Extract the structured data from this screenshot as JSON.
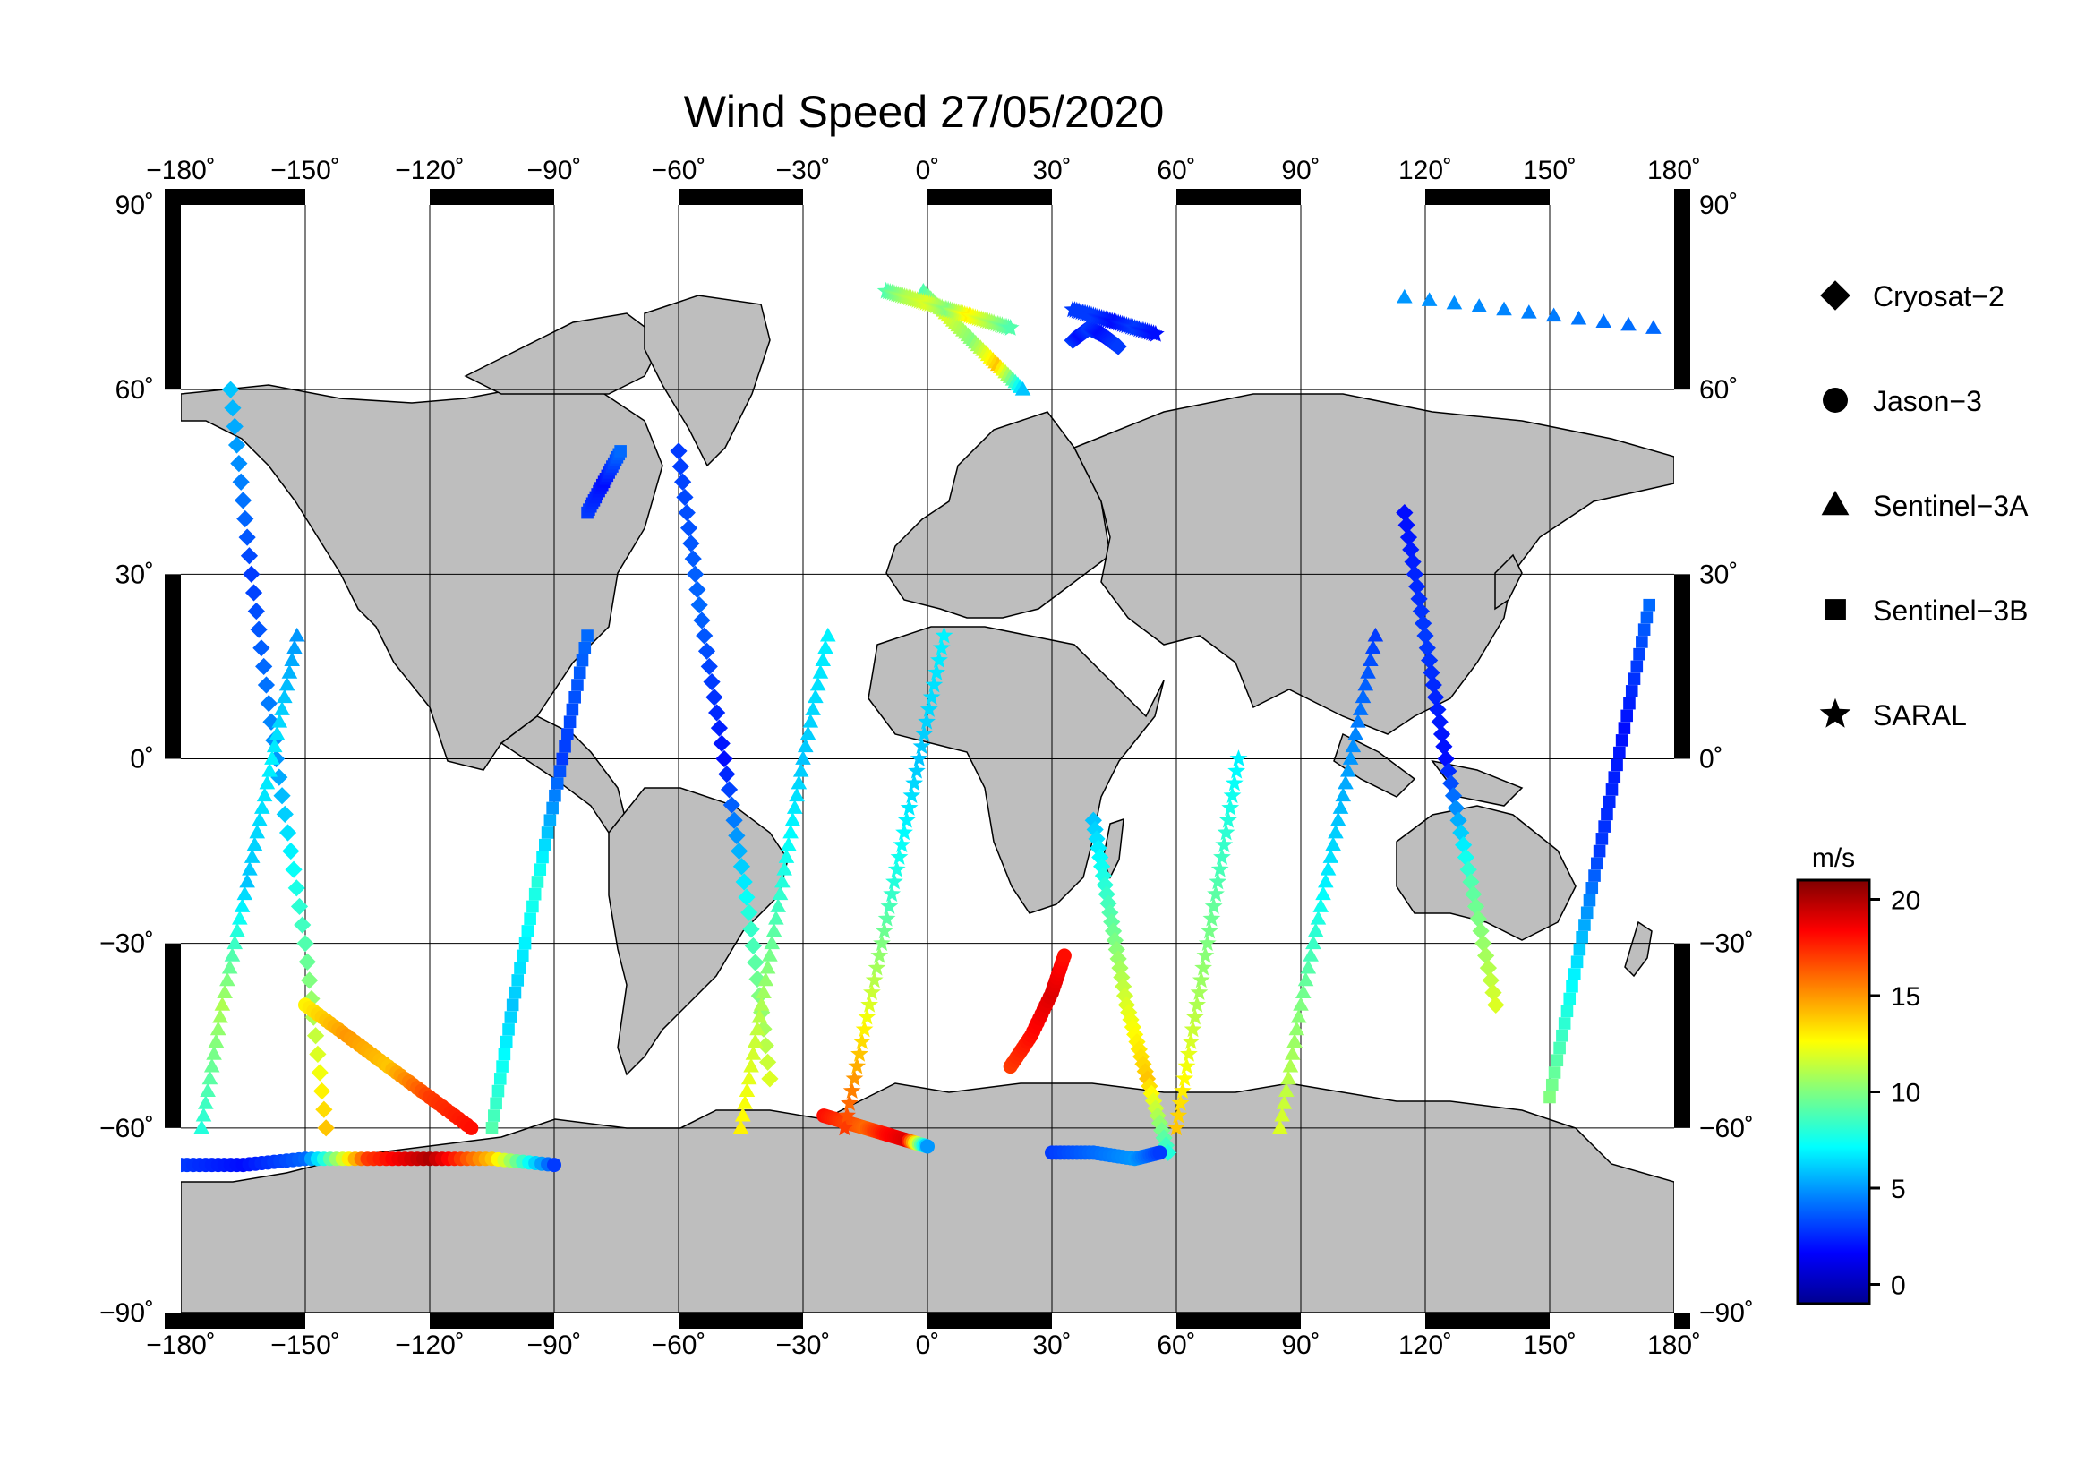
{
  "title": "Wind Speed 27/05/2020",
  "map": {
    "projection": "equirectangular",
    "lon_ticks": [
      {
        "value": -180,
        "label": "−180˚"
      },
      {
        "value": -150,
        "label": "−150˚"
      },
      {
        "value": -120,
        "label": "−120˚"
      },
      {
        "value": -90,
        "label": "−90˚"
      },
      {
        "value": -60,
        "label": "−60˚"
      },
      {
        "value": -30,
        "label": "−30˚"
      },
      {
        "value": 0,
        "label": "0˚"
      },
      {
        "value": 30,
        "label": "30˚"
      },
      {
        "value": 60,
        "label": "60˚"
      },
      {
        "value": 90,
        "label": "90˚"
      },
      {
        "value": 120,
        "label": "120˚"
      },
      {
        "value": 150,
        "label": "150˚"
      },
      {
        "value": 180,
        "label": "180˚"
      }
    ],
    "lat_ticks_left": [
      {
        "value": 90,
        "label": "90˚"
      },
      {
        "value": 60,
        "label": "60˚"
      },
      {
        "value": 30,
        "label": "30˚"
      },
      {
        "value": 0,
        "label": "0˚"
      },
      {
        "value": -30,
        "label": "−30˚"
      },
      {
        "value": -60,
        "label": "−60˚"
      },
      {
        "value": -90,
        "label": "−90˚"
      }
    ],
    "lat_ticks_right": [
      {
        "value": 90,
        "label": "90˚"
      },
      {
        "value": 60,
        "label": "60˚"
      },
      {
        "value": 30,
        "label": "30˚"
      },
      {
        "value": 0,
        "label": "0˚"
      },
      {
        "value": -30,
        "label": "−30˚"
      },
      {
        "value": -60,
        "label": "−60˚"
      },
      {
        "value": -90,
        "label": "−90˚"
      }
    ],
    "land_color": "#bebebe",
    "ocean_color": "#ffffff",
    "grid": true
  },
  "legend": [
    {
      "label": "Cryosat−2",
      "symbol": "diamond"
    },
    {
      "label": "Jason−3",
      "symbol": "circle"
    },
    {
      "label": "Sentinel−3A",
      "symbol": "triangle"
    },
    {
      "label": "Sentinel−3B",
      "symbol": "square"
    },
    {
      "label": "SARAL",
      "symbol": "star"
    }
  ],
  "colorbar": {
    "unit": "m/s",
    "min": -1,
    "max": 21,
    "ticks": [
      {
        "value": 0,
        "label": "0"
      },
      {
        "value": 5,
        "label": "5"
      },
      {
        "value": 10,
        "label": "10"
      },
      {
        "value": 15,
        "label": "15"
      },
      {
        "value": 20,
        "label": "20"
      }
    ],
    "colormap": [
      "#00008f",
      "#0000ff",
      "#0080ff",
      "#00ffff",
      "#80ff80",
      "#ffff00",
      "#ff8000",
      "#ff0000",
      "#800000"
    ]
  },
  "chart_data": {
    "type": "scatter",
    "title": "Wind Speed 27/05/2020",
    "xlim": [
      -180,
      180
    ],
    "ylim": [
      -90,
      90
    ],
    "value_unit": "m/s",
    "value_range": [
      0,
      20
    ],
    "series": [
      {
        "name": "Cryosat−2",
        "symbol": "diamond",
        "tracks": [
          {
            "lon": [
              -168,
              -163,
              -157,
              -150,
              -145
            ],
            "lat": [
              60,
              30,
              0,
              -30,
              -60
            ],
            "value": [
              6,
              3,
              5,
              9,
              14
            ]
          },
          {
            "lon": [
              -60,
              -55,
              -49,
              -43,
              -38
            ],
            "lat": [
              50,
              25,
              0,
              -25,
              -52
            ],
            "value": [
              3,
              4,
              2,
              8,
              12
            ]
          },
          {
            "lon": [
              40,
              44,
              48,
              53,
              58
            ],
            "lat": [
              -10,
              -25,
              -40,
              -52,
              -64
            ],
            "value": [
              6,
              9,
              12,
              14,
              8
            ]
          },
          {
            "lon": [
              115,
              120,
              125,
              131,
              137
            ],
            "lat": [
              40,
              20,
              0,
              -20,
              -40
            ],
            "value": [
              2,
              3,
              2,
              9,
              12
            ]
          },
          {
            "lon": [
              35,
              37,
              39,
              42,
              46
            ],
            "lat": [
              68,
              69,
              70,
              69,
              67
            ],
            "value": [
              3,
              2,
              3,
              2,
              3
            ]
          }
        ]
      },
      {
        "name": "Jason−3",
        "symbol": "circle",
        "tracks": [
          {
            "lon": [
              -180,
              -165,
              -150,
              -135,
              -120,
              -105,
              -90
            ],
            "lat": [
              -66,
              -66,
              -65,
              -65,
              -65,
              -65,
              -66
            ],
            "value": [
              3,
              2,
              4,
              17,
              20,
              14,
              3
            ]
          },
          {
            "lon": [
              -25,
              -20,
              -15,
              -10,
              -5,
              0
            ],
            "lat": [
              -58,
              -59,
              -60,
              -61,
              -62,
              -63
            ],
            "value": [
              18,
              17,
              16,
              18,
              19,
              5
            ]
          },
          {
            "lon": [
              20,
              25,
              30,
              33
            ],
            "lat": [
              -50,
              -45,
              -38,
              -32
            ],
            "value": [
              17,
              18,
              19,
              18
            ]
          },
          {
            "lon": [
              -150,
              -140,
              -130,
              -120,
              -110
            ],
            "lat": [
              -40,
              -45,
              -50,
              -55,
              -60
            ],
            "value": [
              13,
              15,
              14,
              17,
              18
            ]
          },
          {
            "lon": [
              30,
              40,
              50,
              56
            ],
            "lat": [
              -64,
              -64,
              -65,
              -64
            ],
            "value": [
              3,
              4,
              5,
              3
            ]
          }
        ]
      },
      {
        "name": "Sentinel−3A",
        "symbol": "triangle",
        "tracks": [
          {
            "lon": [
              -175,
              -170,
              -164,
              -158,
              -152
            ],
            "lat": [
              -60,
              -40,
              -20,
              0,
              20
            ],
            "value": [
              8,
              11,
              6,
              7,
              5
            ]
          },
          {
            "lon": [
              -45,
              -40,
              -35,
              -30,
              -24
            ],
            "lat": [
              -60,
              -40,
              -20,
              0,
              20
            ],
            "value": [
              13,
              11,
              8,
              6,
              7
            ]
          },
          {
            "lon": [
              85,
              90,
              96,
              102,
              108
            ],
            "lat": [
              -60,
              -40,
              -20,
              0,
              20
            ],
            "value": [
              12,
              10,
              7,
              5,
              3
            ]
          },
          {
            "lon": [
              -1,
              5,
              11,
              17,
              23
            ],
            "lat": [
              76,
              72,
              68,
              64,
              60
            ],
            "value": [
              9,
              12,
              10,
              14,
              6
            ]
          },
          {
            "lon": [
              115,
              175
            ],
            "lat": [
              75,
              70
            ],
            "value": [
              5,
              4
            ]
          }
        ]
      },
      {
        "name": "Sentinel−3B",
        "symbol": "square",
        "tracks": [
          {
            "lon": [
              -105,
              -100,
              -94,
              -88,
              -82
            ],
            "lat": [
              -60,
              -40,
              -20,
              0,
              20
            ],
            "value": [
              9,
              6,
              8,
              3,
              4
            ]
          },
          {
            "lon": [
              150,
              156,
              162,
              168,
              174
            ],
            "lat": [
              -55,
              -35,
              -15,
              5,
              25
            ],
            "value": [
              10,
              7,
              3,
              2,
              4
            ]
          },
          {
            "lon": [
              -82,
              -78,
              -74
            ],
            "lat": [
              40,
              45,
              50
            ],
            "value": [
              3,
              2,
              4
            ]
          }
        ]
      },
      {
        "name": "SARAL",
        "symbol": "star",
        "tracks": [
          {
            "lon": [
              -20,
              -14,
              -8,
              -2,
              4
            ],
            "lat": [
              -60,
              -40,
              -20,
              0,
              20
            ],
            "value": [
              17,
              12,
              8,
              6,
              7
            ]
          },
          {
            "lon": [
              35,
              40,
              45,
              50,
              55
            ],
            "lat": [
              73,
              72,
              71,
              70,
              69
            ],
            "value": [
              3,
              3,
              2,
              3,
              2
            ]
          },
          {
            "lon": [
              60,
              65,
              70,
              75
            ],
            "lat": [
              -60,
              -40,
              -20,
              0
            ],
            "value": [
              14,
              11,
              9,
              7
            ]
          },
          {
            "lon": [
              -10,
              -5,
              0,
              5,
              10,
              15,
              20
            ],
            "lat": [
              76,
              75,
              74,
              73,
              72,
              71,
              70
            ],
            "value": [
              9,
              11,
              12,
              10,
              13,
              11,
              9
            ]
          }
        ]
      }
    ]
  }
}
